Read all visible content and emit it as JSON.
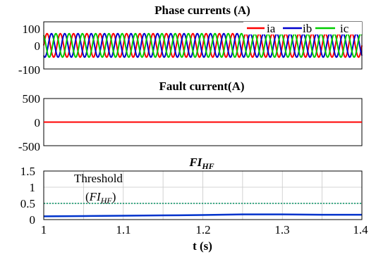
{
  "chart_data": [
    {
      "type": "line",
      "title": "Phase currents (A)",
      "xlim": [
        1,
        1.4
      ],
      "ylim": [
        -100,
        100
      ],
      "yticks": [
        "100",
        "0",
        "-100"
      ],
      "grid": false,
      "legend_position": "top-right",
      "colors": [
        "#ff0000",
        "#0000cc",
        "#00cc00"
      ],
      "series": [
        {
          "name": "ia",
          "amplitude": 50,
          "frequency_hz": 60,
          "phase_deg": 0
        },
        {
          "name": "ib",
          "amplitude": 50,
          "frequency_hz": 60,
          "phase_deg": -120
        },
        {
          "name": "ic",
          "amplitude": 50,
          "frequency_hz": 60,
          "phase_deg": 120
        }
      ]
    },
    {
      "type": "line",
      "title": "Fault current(A)",
      "xlim": [
        1,
        1.4
      ],
      "ylim": [
        -500,
        500
      ],
      "yticks": [
        "500",
        "0",
        "-500"
      ],
      "grid": false,
      "color": "#ff0000",
      "series": [
        {
          "x": [
            1,
            1.4
          ],
          "y": [
            0,
            0
          ]
        }
      ]
    },
    {
      "type": "line",
      "title_main": "FI",
      "title_sub": "HF",
      "xlim": [
        1,
        1.4
      ],
      "ylim": [
        0,
        1.5
      ],
      "yticks": [
        "1.5",
        "1",
        "0.5",
        "0"
      ],
      "xticks": [
        "1",
        "1.1",
        "1.2",
        "1.3",
        "1.4"
      ],
      "xlabel": "t (s)",
      "grid": true,
      "color": "#0033cc",
      "threshold_color": "#009060",
      "threshold": 0.5,
      "annotation_line1": "Threshold",
      "annotation_open": "(",
      "annotation_main": "FI",
      "annotation_sub": "HF",
      "annotation_close": ")",
      "series": [
        {
          "x": [
            1.0,
            1.05,
            1.1,
            1.15,
            1.2,
            1.25,
            1.3,
            1.35,
            1.4
          ],
          "y": [
            0.1,
            0.11,
            0.12,
            0.13,
            0.14,
            0.16,
            0.16,
            0.15,
            0.15
          ]
        }
      ]
    }
  ]
}
